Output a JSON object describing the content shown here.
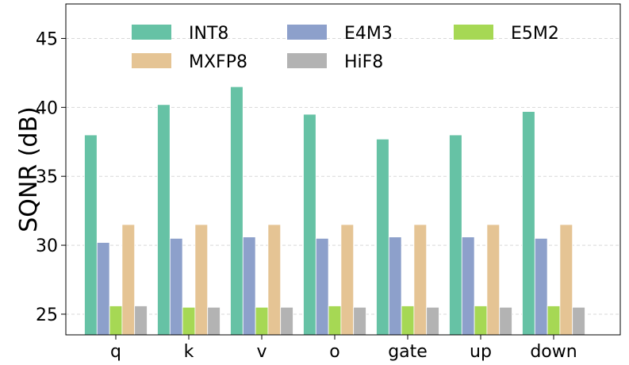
{
  "chart_data": {
    "type": "bar",
    "categories": [
      "q",
      "k",
      "v",
      "o",
      "gate",
      "up",
      "down"
    ],
    "series": [
      {
        "name": "INT8",
        "color": "#66c2a5",
        "values": [
          38.0,
          40.2,
          41.5,
          39.5,
          37.7,
          38.0,
          39.7
        ]
      },
      {
        "name": "E4M3",
        "color": "#8da0cb",
        "values": [
          30.2,
          30.5,
          30.6,
          30.5,
          30.6,
          30.6,
          30.5
        ]
      },
      {
        "name": "E5M2",
        "color": "#a6d854",
        "values": [
          25.6,
          25.5,
          25.5,
          25.6,
          25.6,
          25.6,
          25.6
        ]
      },
      {
        "name": "MXFP8",
        "color": "#e5c494",
        "values": [
          31.5,
          31.5,
          31.5,
          31.5,
          31.5,
          31.5,
          31.5
        ]
      },
      {
        "name": "HiF8",
        "color": "#b3b3b3",
        "values": [
          25.6,
          25.5,
          25.5,
          25.5,
          25.5,
          25.5,
          25.5
        ]
      }
    ],
    "title": "",
    "xlabel": "",
    "ylabel": "SQNR (dB)",
    "ylim": [
      23.5,
      47.5
    ],
    "yticks": [
      25,
      30,
      35,
      40,
      45
    ],
    "grid": true,
    "legend_position": "top",
    "legend_columns": 3
  }
}
